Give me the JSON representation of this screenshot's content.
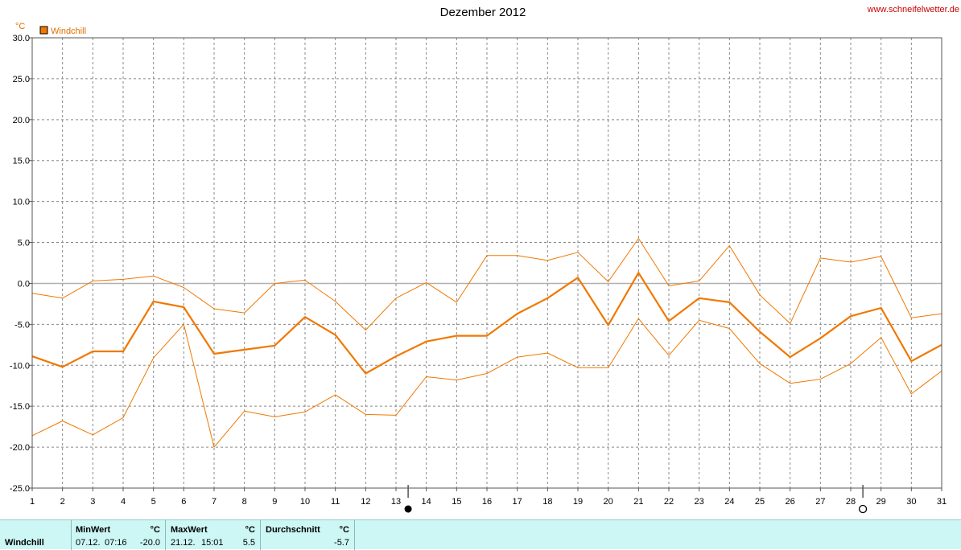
{
  "site": "www.schneifelwetter.de",
  "chart_data": {
    "type": "line",
    "title": "Dezember 2012",
    "ylabel": "°C",
    "ylim": [
      -25,
      30
    ],
    "yticks": [
      "30.0",
      "25.0",
      "20.0",
      "15.0",
      "10.0",
      "5.0",
      "0.0",
      "-5.0",
      "-10.0",
      "-15.0",
      "-20.0",
      "-25.0"
    ],
    "x": [
      1,
      2,
      3,
      4,
      5,
      6,
      7,
      8,
      9,
      10,
      11,
      12,
      13,
      14,
      15,
      16,
      17,
      18,
      19,
      20,
      21,
      22,
      23,
      24,
      25,
      26,
      27,
      28,
      29,
      30,
      31
    ],
    "legend": "Windchill",
    "legend_position": "top-left",
    "grid": true,
    "colors": {
      "line": "#f07800",
      "grid": "#888888",
      "zero": "#b0b0b0"
    },
    "series": [
      {
        "name": "Windchill",
        "role": "avg",
        "values": [
          -8.9,
          -10.2,
          -8.3,
          -8.3,
          -2.2,
          -2.9,
          -8.6,
          -8.1,
          -7.6,
          -4.1,
          -6.3,
          -11.0,
          -8.9,
          -7.1,
          -6.4,
          -6.4,
          -3.7,
          -1.8,
          0.7,
          -5.1,
          1.3,
          -4.6,
          -1.8,
          -2.3,
          -5.9,
          -9.0,
          -6.7,
          -4.0,
          -3.0,
          -9.5,
          -7.5
        ]
      },
      {
        "role": "max",
        "values": [
          -1.2,
          -1.8,
          0.3,
          0.5,
          0.9,
          -0.5,
          -3.1,
          -3.6,
          0.0,
          0.4,
          -2.2,
          -5.7,
          -1.8,
          0.1,
          -2.3,
          3.4,
          3.4,
          2.8,
          3.8,
          0.2,
          5.5,
          -0.3,
          0.3,
          4.6,
          -1.4,
          -4.9,
          3.1,
          2.6,
          3.3,
          -4.2,
          -3.7
        ]
      },
      {
        "role": "min",
        "values": [
          -18.6,
          -16.8,
          -18.5,
          -16.4,
          -9.1,
          -5.0,
          -20.0,
          -15.6,
          -16.3,
          -15.7,
          -13.6,
          -16.0,
          -16.1,
          -11.4,
          -11.8,
          -11.0,
          -9.0,
          -8.5,
          -10.3,
          -10.3,
          -4.3,
          -8.8,
          -4.5,
          -5.5,
          -9.8,
          -12.2,
          -11.7,
          -9.8,
          -6.6,
          -13.5,
          -10.7
        ]
      }
    ],
    "moon_new_day": 13.4,
    "moon_full_day": 28.4
  },
  "stats": {
    "label": "Windchill",
    "min": {
      "header": "MinWert",
      "unit": "°C",
      "date": "07.12.",
      "time": "07:16",
      "value": "-20.0"
    },
    "max": {
      "header": "MaxWert",
      "unit": "°C",
      "date": "21.12.",
      "time": "15:01",
      "value": "5.5"
    },
    "avg": {
      "header": "Durchschnitt",
      "unit": "°C",
      "value": "-5.7"
    }
  }
}
